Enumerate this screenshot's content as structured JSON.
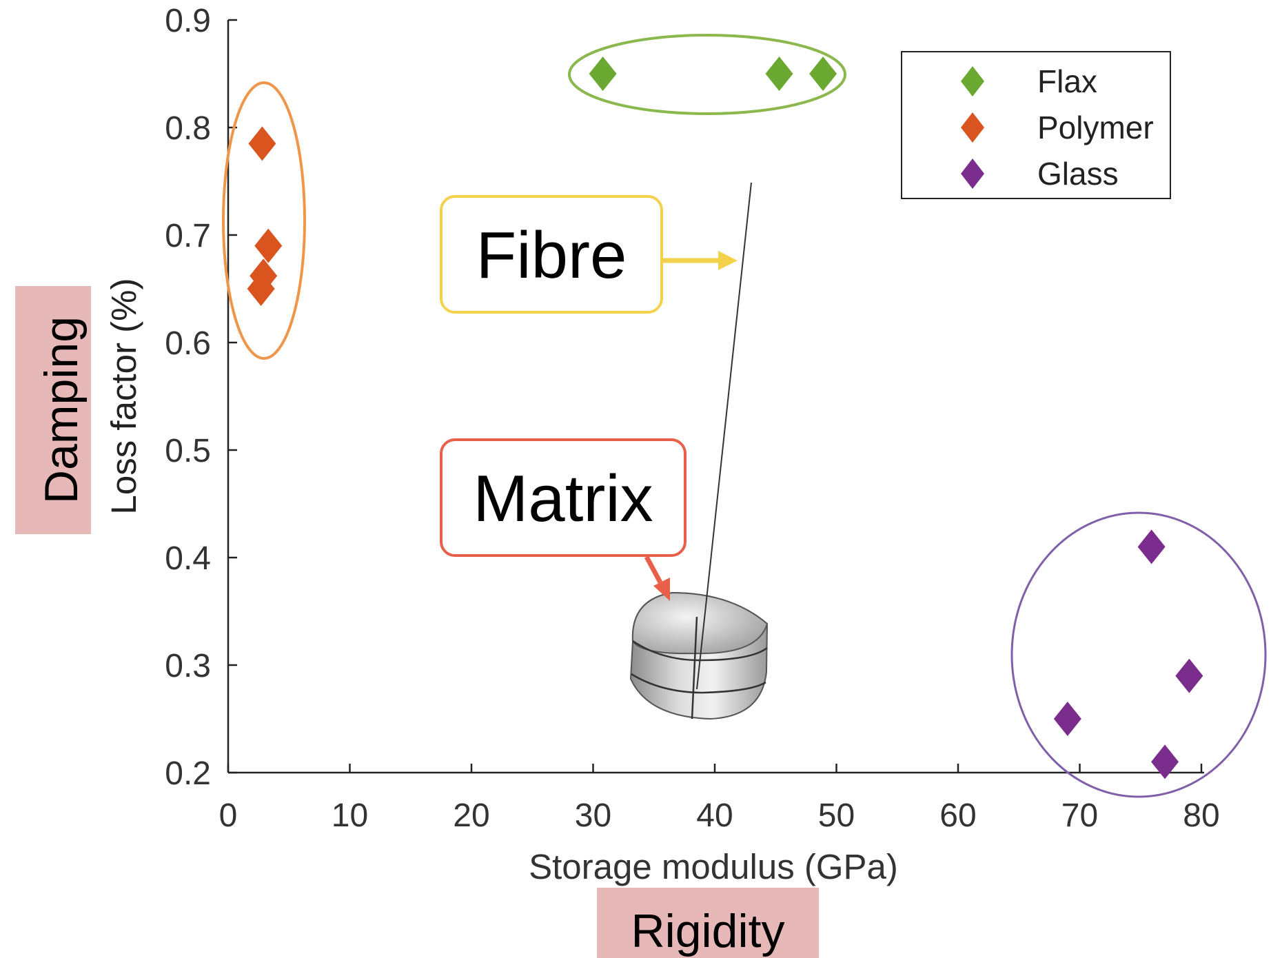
{
  "chart_data": {
    "type": "scatter",
    "xlabel": "Storage modulus (GPa)",
    "ylabel": "Loss factor (%)",
    "xlim": [
      0,
      80
    ],
    "ylim": [
      0.2,
      0.9
    ],
    "xticks": [
      0,
      10,
      20,
      30,
      40,
      50,
      60,
      70,
      80
    ],
    "yticks": [
      0.2,
      0.3,
      0.4,
      0.5,
      0.6,
      0.7,
      0.8,
      0.9
    ],
    "xtick_labels": [
      "0",
      "10",
      "20",
      "30",
      "40",
      "50",
      "60",
      "70",
      "80"
    ],
    "ytick_labels": [
      "0.2",
      "0.3",
      "0.4",
      "0.5",
      "0.6",
      "0.7",
      "0.8",
      "0.9"
    ],
    "grid": false,
    "legend_position": "top-right",
    "series": [
      {
        "name": "Flax",
        "color": "#6aa832",
        "marker": "diamond",
        "x": [
          30.8,
          45.3,
          48.9
        ],
        "y": [
          0.85,
          0.85,
          0.85
        ]
      },
      {
        "name": "Polymer",
        "color": "#d9541e",
        "marker": "diamond",
        "x": [
          2.8,
          3.3,
          2.9,
          2.7
        ],
        "y": [
          0.785,
          0.69,
          0.662,
          0.65
        ]
      },
      {
        "name": "Glass",
        "color": "#7b2d8e",
        "marker": "diamond",
        "x": [
          75.9,
          79.0,
          69.0,
          77.0
        ],
        "y": [
          0.41,
          0.29,
          0.25,
          0.21
        ]
      }
    ],
    "group_outlines": [
      {
        "series": "Flax",
        "color": "#8ab84c"
      },
      {
        "series": "Polymer",
        "color": "#f0964a"
      },
      {
        "series": "Glass",
        "color": "#7f5fa8"
      }
    ],
    "annotations": {
      "fibre": {
        "text": "Fibre",
        "color": "#f2d24a"
      },
      "matrix": {
        "text": "Matrix",
        "color": "#e8604a"
      },
      "damping": {
        "text": "Damping",
        "bg": "#e6b8b8"
      },
      "rigidity": {
        "text": "Rigidity",
        "bg": "#e6b8b8"
      }
    }
  }
}
